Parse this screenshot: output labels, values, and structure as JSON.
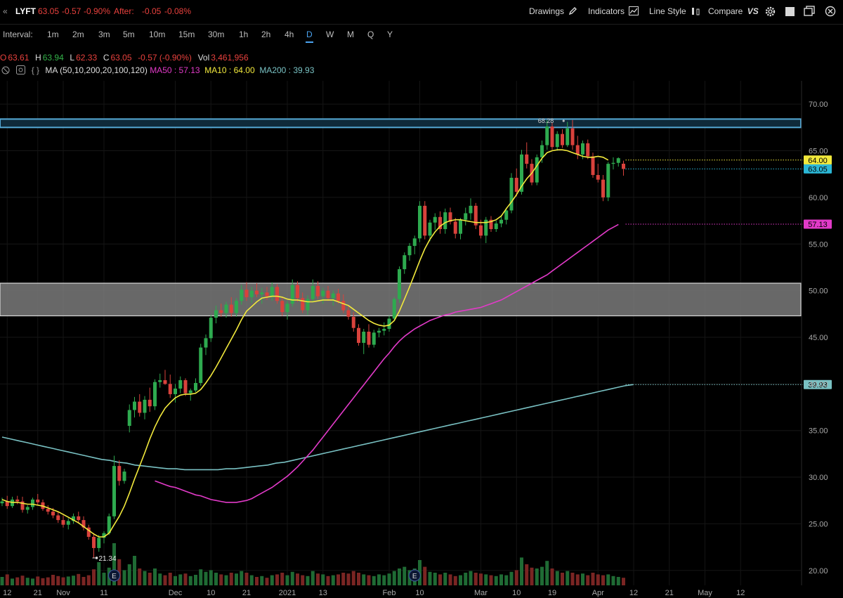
{
  "toolbar": {
    "collapse_glyph": "«",
    "symbol": "LYFT",
    "last": "63.05",
    "change": "-0.57",
    "change_pct": "-0.90%",
    "after_label": "After:",
    "after_change": "-0.05",
    "after_pct": "-0.08%",
    "drawings": "Drawings",
    "indicators": "Indicators",
    "line_style": "Line Style",
    "compare": "Compare",
    "compare_vs": "VS"
  },
  "intervals": {
    "label": "Interval:",
    "items": [
      "1m",
      "2m",
      "3m",
      "5m",
      "10m",
      "15m",
      "30m",
      "1h",
      "2h",
      "4h",
      "D",
      "W",
      "M",
      "Q",
      "Y"
    ],
    "active": "D"
  },
  "ohlc": {
    "o_label": "O",
    "o": "63.61",
    "h_label": "H",
    "h": "63.94",
    "l_label": "L",
    "l": "62.33",
    "c_label": "C",
    "c": "63.05",
    "chg": "-0.57 (-0.90%)",
    "vol_label": "Vol",
    "vol": "3,461,956"
  },
  "ma_legend": {
    "name": "MA (50,10,200,20,100,120)",
    "ma50": "MA50 : 57.13",
    "ma10": "MA10 : 64.00",
    "ma200": "MA200 : 39.93"
  },
  "colors": {
    "up": "#2eaa4f",
    "down": "#d9423c",
    "ma10": "#f2e93c",
    "ma50": "#e23ac8",
    "ma200": "#79c1c3",
    "zone_top": "#56a9d6",
    "zone_mid": "#bdbdbd"
  },
  "chart_data": {
    "type": "candlestick",
    "y_axis": {
      "ticks": [
        "70.00",
        "65.00",
        "60.00",
        "55.00",
        "50.00",
        "45.00",
        "40.00",
        "35.00",
        "30.00",
        "25.00",
        "20.00"
      ],
      "range": [
        18.4,
        72.5
      ]
    },
    "x_axis": {
      "ticks": [
        {
          "label": "12",
          "i": 1
        },
        {
          "label": "21",
          "i": 7
        },
        {
          "label": "Nov",
          "i": 12
        },
        {
          "label": "11",
          "i": 20
        },
        {
          "label": "Dec",
          "i": 34
        },
        {
          "label": "10",
          "i": 41
        },
        {
          "label": "21",
          "i": 48
        },
        {
          "label": "2021",
          "i": 56
        },
        {
          "label": "13",
          "i": 63
        },
        {
          "label": "Feb",
          "i": 76
        },
        {
          "label": "10",
          "i": 82
        },
        {
          "label": "Mar",
          "i": 94
        },
        {
          "label": "10",
          "i": 101
        },
        {
          "label": "19",
          "i": 108
        },
        {
          "label": "Apr",
          "i": 117
        },
        {
          "label": "12",
          "i": 124
        },
        {
          "label": "21",
          "i": 131
        },
        {
          "label": "May",
          "i": 138
        },
        {
          "label": "12",
          "i": 145
        }
      ]
    },
    "candles": [
      [
        27.2,
        27.8,
        26.9,
        27.4
      ],
      [
        27.4,
        28.0,
        26.6,
        26.9
      ],
      [
        26.9,
        27.9,
        26.7,
        27.6
      ],
      [
        27.6,
        28.0,
        27.1,
        27.4
      ],
      [
        27.4,
        27.9,
        26.2,
        26.5
      ],
      [
        26.5,
        27.0,
        26.1,
        26.8
      ],
      [
        26.8,
        27.8,
        26.5,
        27.6
      ],
      [
        27.6,
        28.2,
        27.0,
        27.3
      ],
      [
        27.3,
        27.6,
        26.4,
        26.6
      ],
      [
        26.6,
        27.0,
        26.0,
        26.3
      ],
      [
        26.3,
        26.7,
        25.6,
        25.9
      ],
      [
        25.9,
        26.3,
        25.1,
        25.4
      ],
      [
        25.4,
        25.9,
        24.6,
        24.9
      ],
      [
        24.9,
        25.6,
        24.4,
        25.3
      ],
      [
        25.3,
        26.1,
        25.0,
        25.8
      ],
      [
        25.8,
        26.3,
        25.1,
        25.4
      ],
      [
        25.4,
        25.8,
        24.3,
        24.6
      ],
      [
        24.6,
        24.9,
        23.3,
        23.6
      ],
      [
        23.6,
        24.0,
        21.34,
        22.4
      ],
      [
        22.4,
        23.8,
        22.0,
        23.5
      ],
      [
        23.5,
        24.2,
        22.9,
        24.0
      ],
      [
        24.0,
        26.1,
        23.8,
        25.8
      ],
      [
        25.8,
        32.3,
        25.5,
        31.2
      ],
      [
        31.2,
        31.8,
        29.1,
        29.6
      ],
      [
        29.6,
        30.9,
        29.3,
        30.6
      ],
      [
        35.5,
        37.8,
        34.8,
        37.2
      ],
      [
        37.2,
        38.6,
        36.4,
        38.1
      ],
      [
        38.1,
        38.9,
        36.5,
        36.9
      ],
      [
        36.9,
        38.7,
        36.2,
        38.3
      ],
      [
        38.3,
        39.6,
        37.0,
        37.6
      ],
      [
        37.6,
        40.5,
        37.2,
        40.2
      ],
      [
        40.2,
        41.1,
        39.6,
        40.4
      ],
      [
        40.4,
        41.5,
        39.9,
        40.0
      ],
      [
        40.0,
        41.0,
        38.5,
        38.9
      ],
      [
        38.9,
        40.0,
        38.0,
        39.5
      ],
      [
        39.5,
        40.8,
        39.0,
        40.4
      ],
      [
        40.4,
        40.6,
        38.7,
        39.0
      ],
      [
        39.0,
        39.5,
        38.2,
        39.3
      ],
      [
        39.3,
        40.6,
        39.1,
        40.1
      ],
      [
        40.1,
        44.3,
        39.8,
        43.9
      ],
      [
        43.9,
        45.3,
        43.1,
        44.9
      ],
      [
        44.9,
        47.4,
        44.5,
        47.1
      ],
      [
        47.1,
        48.4,
        46.5,
        47.9
      ],
      [
        47.9,
        48.6,
        47.2,
        47.6
      ],
      [
        47.6,
        48.8,
        47.1,
        48.5
      ],
      [
        48.5,
        49.3,
        47.2,
        47.6
      ],
      [
        47.6,
        49.2,
        47.2,
        48.9
      ],
      [
        48.9,
        50.6,
        48.5,
        50.1
      ],
      [
        50.1,
        50.9,
        48.9,
        49.3
      ],
      [
        49.3,
        50.4,
        48.7,
        50.0
      ],
      [
        50.0,
        50.8,
        49.3,
        49.6
      ],
      [
        49.6,
        50.3,
        48.6,
        49.8
      ],
      [
        49.8,
        50.4,
        49.0,
        49.4
      ],
      [
        49.4,
        50.9,
        48.9,
        50.4
      ],
      [
        50.4,
        50.7,
        48.6,
        48.9
      ],
      [
        48.9,
        49.3,
        47.3,
        47.7
      ],
      [
        47.7,
        48.9,
        46.9,
        48.6
      ],
      [
        48.6,
        51.2,
        48.3,
        50.6
      ],
      [
        50.6,
        51.0,
        48.8,
        49.2
      ],
      [
        49.2,
        49.8,
        47.6,
        47.9
      ],
      [
        47.9,
        49.5,
        47.4,
        49.1
      ],
      [
        49.1,
        51.2,
        48.8,
        50.5
      ],
      [
        50.5,
        51.0,
        49.1,
        49.4
      ],
      [
        49.4,
        50.3,
        48.6,
        50.0
      ],
      [
        50.0,
        50.5,
        48.9,
        49.2
      ],
      [
        49.2,
        50.0,
        48.4,
        49.7
      ],
      [
        49.7,
        50.2,
        48.6,
        48.9
      ],
      [
        48.9,
        49.6,
        47.6,
        47.9
      ],
      [
        47.9,
        48.3,
        46.9,
        47.2
      ],
      [
        47.2,
        47.7,
        45.6,
        46.0
      ],
      [
        46.0,
        46.4,
        44.1,
        44.4
      ],
      [
        44.4,
        45.9,
        43.2,
        45.6
      ],
      [
        45.6,
        46.4,
        43.9,
        44.2
      ],
      [
        44.2,
        45.8,
        43.9,
        45.5
      ],
      [
        45.5,
        46.0,
        45.0,
        45.7
      ],
      [
        45.7,
        46.6,
        45.2,
        45.9
      ],
      [
        45.9,
        47.3,
        45.6,
        47.0
      ],
      [
        47.0,
        49.3,
        46.8,
        49.1
      ],
      [
        49.1,
        52.6,
        48.7,
        52.3
      ],
      [
        52.3,
        54.1,
        51.8,
        53.8
      ],
      [
        53.8,
        55.1,
        53.2,
        54.8
      ],
      [
        54.8,
        55.9,
        53.9,
        55.6
      ],
      [
        55.6,
        59.6,
        55.2,
        59.1
      ],
      [
        59.1,
        59.6,
        55.5,
        55.9
      ],
      [
        55.9,
        57.6,
        55.3,
        57.3
      ],
      [
        57.3,
        58.3,
        56.5,
        57.9
      ],
      [
        57.9,
        58.5,
        56.1,
        56.6
      ],
      [
        56.6,
        58.8,
        56.1,
        58.4
      ],
      [
        58.4,
        58.9,
        57.1,
        57.4
      ],
      [
        57.4,
        57.8,
        55.6,
        56.1
      ],
      [
        56.1,
        57.8,
        55.5,
        57.6
      ],
      [
        57.6,
        58.9,
        57.0,
        58.3
      ],
      [
        58.3,
        59.9,
        57.6,
        59.1
      ],
      [
        59.1,
        59.4,
        56.6,
        57.0
      ],
      [
        57.0,
        57.6,
        55.6,
        55.9
      ],
      [
        55.9,
        57.9,
        55.1,
        57.6
      ],
      [
        57.6,
        58.0,
        56.3,
        56.6
      ],
      [
        56.6,
        57.5,
        56.3,
        57.2
      ],
      [
        57.2,
        58.1,
        56.8,
        57.6
      ],
      [
        57.6,
        58.9,
        57.1,
        58.6
      ],
      [
        58.6,
        62.6,
        58.3,
        62.1
      ],
      [
        62.1,
        63.1,
        60.1,
        60.6
      ],
      [
        60.6,
        65.1,
        60.3,
        64.6
      ],
      [
        64.6,
        65.9,
        63.1,
        63.6
      ],
      [
        63.6,
        64.1,
        61.3,
        61.6
      ],
      [
        61.6,
        64.6,
        61.3,
        64.3
      ],
      [
        64.3,
        66.1,
        63.7,
        65.6
      ],
      [
        65.6,
        68.28,
        65.1,
        67.6
      ],
      [
        67.6,
        68.0,
        65.1,
        65.4
      ],
      [
        65.4,
        67.1,
        65.0,
        66.8
      ],
      [
        66.8,
        67.3,
        65.3,
        65.6
      ],
      [
        65.6,
        68.1,
        65.4,
        67.4
      ],
      [
        67.4,
        68.3,
        65.1,
        65.6
      ],
      [
        65.6,
        66.6,
        64.1,
        64.6
      ],
      [
        64.6,
        66.1,
        64.1,
        65.8
      ],
      [
        65.8,
        66.2,
        64.1,
        64.4
      ],
      [
        64.4,
        64.8,
        62.1,
        62.4
      ],
      [
        62.4,
        63.6,
        61.6,
        61.9
      ],
      [
        61.9,
        62.4,
        59.6,
        60.0
      ],
      [
        60.0,
        63.8,
        59.6,
        63.6
      ],
      [
        63.6,
        64.3,
        63.0,
        63.7
      ],
      [
        63.7,
        64.3,
        63.3,
        64.2
      ],
      [
        63.61,
        63.94,
        62.33,
        63.05
      ]
    ],
    "volume": [
      0.2,
      0.26,
      0.16,
      0.19,
      0.23,
      0.18,
      0.16,
      0.21,
      0.17,
      0.19,
      0.25,
      0.22,
      0.19,
      0.21,
      0.23,
      0.27,
      0.2,
      0.24,
      0.38,
      0.55,
      0.3,
      0.42,
      1.0,
      0.62,
      0.36,
      0.5,
      0.7,
      0.4,
      0.34,
      0.3,
      0.4,
      0.28,
      0.24,
      0.3,
      0.22,
      0.26,
      0.28,
      0.22,
      0.25,
      0.38,
      0.32,
      0.36,
      0.3,
      0.26,
      0.24,
      0.3,
      0.28,
      0.34,
      0.3,
      0.24,
      0.2,
      0.22,
      0.18,
      0.24,
      0.26,
      0.3,
      0.24,
      0.32,
      0.28,
      0.24,
      0.22,
      0.34,
      0.28,
      0.26,
      0.22,
      0.24,
      0.26,
      0.3,
      0.28,
      0.34,
      0.3,
      0.26,
      0.24,
      0.22,
      0.26,
      0.24,
      0.28,
      0.34,
      0.4,
      0.44,
      0.36,
      0.4,
      0.6,
      0.44,
      0.32,
      0.3,
      0.26,
      0.3,
      0.26,
      0.22,
      0.24,
      0.3,
      0.34,
      0.3,
      0.28,
      0.26,
      0.24,
      0.22,
      0.26,
      0.24,
      0.32,
      0.36,
      0.66,
      0.5,
      0.42,
      0.4,
      0.44,
      0.58,
      0.4,
      0.34,
      0.3,
      0.34,
      0.3,
      0.26,
      0.28,
      0.24,
      0.3,
      0.26,
      0.24,
      0.26,
      0.22,
      0.2,
      0.18
    ],
    "ma10_values": [
      27.6,
      27.4,
      27.3,
      27.3,
      27.2,
      27.1,
      27.1,
      27.0,
      26.9,
      26.7,
      26.5,
      26.3,
      26.0,
      25.7,
      25.4,
      25.1,
      24.7,
      24.3,
      23.9,
      23.6,
      23.6,
      24.0,
      24.9,
      25.8,
      26.9,
      28.3,
      29.8,
      31.2,
      32.6,
      34.1,
      35.4,
      36.5,
      37.4,
      38.0,
      38.5,
      38.8,
      38.9,
      38.9,
      39.0,
      39.4,
      40.1,
      40.9,
      41.8,
      42.8,
      43.8,
      44.8,
      45.8,
      46.9,
      47.8,
      48.3,
      48.8,
      49.2,
      49.3,
      49.4,
      49.4,
      49.3,
      49.1,
      49.0,
      49.0,
      48.9,
      48.8,
      48.8,
      48.9,
      49.0,
      49.0,
      49.0,
      48.8,
      48.6,
      48.4,
      48.0,
      47.6,
      47.2,
      46.8,
      46.5,
      46.3,
      46.2,
      46.3,
      46.8,
      47.8,
      49.1,
      50.4,
      51.8,
      53.2,
      54.5,
      55.5,
      56.3,
      56.9,
      57.3,
      57.5,
      57.6,
      57.6,
      57.5,
      57.4,
      57.3,
      57.3,
      57.3,
      57.4,
      57.6,
      58.0,
      58.8,
      59.5,
      60.3,
      61.2,
      62.0,
      62.6,
      63.4,
      64.2,
      64.8,
      65.0,
      65.1,
      65.1,
      65.0,
      64.8,
      64.6,
      64.4,
      64.3,
      64.3,
      64.4,
      64.3,
      64.0
    ],
    "ma50_values": [
      29.6,
      29.4,
      29.2,
      29.0,
      28.9,
      28.7,
      28.5,
      28.3,
      28.1,
      28.0,
      27.8,
      27.6,
      27.5,
      27.4,
      27.3,
      27.3,
      27.3,
      27.4,
      27.5,
      27.7,
      28.0,
      28.3,
      28.6,
      28.9,
      29.3,
      29.7,
      30.1,
      30.6,
      31.1,
      31.7,
      32.3,
      32.9,
      33.6,
      34.3,
      35.0,
      35.7,
      36.4,
      37.1,
      37.8,
      38.5,
      39.2,
      39.9,
      40.6,
      41.3,
      42.0,
      42.7,
      43.3,
      44.0,
      44.6,
      45.1,
      45.5,
      45.9,
      46.2,
      46.5,
      46.8,
      47.0,
      47.2,
      47.4,
      47.5,
      47.7,
      47.8,
      47.9,
      48.0,
      48.1,
      48.2,
      48.4,
      48.6,
      48.8,
      49.0,
      49.3,
      49.6,
      49.9,
      50.2,
      50.5,
      50.8,
      51.1,
      51.4,
      51.7,
      52.1,
      52.5,
      52.9,
      53.3,
      53.7,
      54.1,
      54.5,
      54.9,
      55.3,
      55.7,
      56.1,
      56.5,
      56.8,
      57.1
    ],
    "ma200_values": [
      34.3,
      34.1,
      33.9,
      33.7,
      33.5,
      33.3,
      33.1,
      32.9,
      32.7,
      32.5,
      32.3,
      32.1,
      31.9,
      31.8,
      31.6,
      31.5,
      31.3,
      31.2,
      31.1,
      31.0,
      30.9,
      30.9,
      30.8,
      30.8,
      30.8,
      30.8,
      30.8,
      30.9,
      30.9,
      31.0,
      31.1,
      31.2,
      31.3,
      31.5,
      31.6,
      31.8,
      32.0,
      32.2,
      32.4,
      32.6,
      32.8,
      33.0,
      33.2,
      33.4,
      33.6,
      33.8,
      34.0,
      34.2,
      34.4,
      34.6,
      34.8,
      35.0,
      35.2,
      35.4,
      35.6,
      35.8,
      36.0,
      36.2,
      36.4,
      36.6,
      36.8,
      37.0,
      37.2,
      37.4,
      37.6,
      37.8,
      38.0,
      38.2,
      38.4,
      38.6,
      38.8,
      39.0,
      39.2,
      39.4,
      39.6,
      39.8,
      39.93
    ],
    "ma50_start_index": 30,
    "ma200_start_index": 0,
    "ma200_step": 1.63,
    "zones": [
      {
        "name": "resistance",
        "low": 67.5,
        "high": 68.4
      },
      {
        "name": "support",
        "low": 47.3,
        "high": 50.8
      }
    ],
    "annotations": [
      {
        "text": "68.28",
        "i": 109,
        "value": 68.28
      },
      {
        "text": "21.34",
        "i": 18,
        "value": 21.34
      }
    ],
    "price_labels": [
      {
        "text": "64.00",
        "value": 64.0,
        "color": "#f2e93c",
        "fg": "#000"
      },
      {
        "text": "63.05",
        "value": 63.05,
        "color": "#2bb7d6",
        "fg": "#000"
      },
      {
        "text": "57.13",
        "value": 57.13,
        "color": "#e23ac8",
        "fg": "#000"
      },
      {
        "text": "39.93",
        "value": 39.93,
        "color": "#79c1c3",
        "fg": "#000"
      }
    ],
    "earnings_markers": [
      {
        "text": "E",
        "i": 22
      },
      {
        "text": "E",
        "i": 81
      }
    ]
  }
}
